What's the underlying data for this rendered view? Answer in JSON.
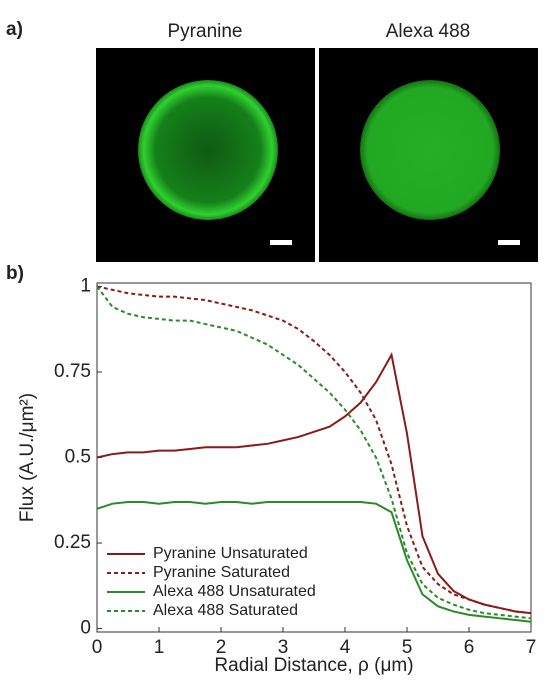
{
  "figure": {
    "panel_a_label": "a)",
    "panel_b_label": "b)",
    "image_titles": [
      "Pyranine",
      "Alexa 488"
    ]
  },
  "chart_data": {
    "type": "line",
    "x_label": "Radial Distance, ρ (μm)",
    "y_label": "Flux (A.U./μm²)",
    "x": [
      0,
      0.25,
      0.5,
      0.75,
      1,
      1.25,
      1.5,
      1.75,
      2,
      2.25,
      2.5,
      2.75,
      3,
      3.25,
      3.5,
      3.75,
      4,
      4.25,
      4.5,
      4.75,
      5,
      5.25,
      5.5,
      5.75,
      6,
      6.25,
      6.5,
      6.75,
      7
    ],
    "series": [
      {
        "name": "Pyranine Unsaturated",
        "color": "#8b1a1a",
        "dash": false,
        "values": [
          0.5,
          0.51,
          0.515,
          0.515,
          0.52,
          0.52,
          0.525,
          0.53,
          0.53,
          0.53,
          0.535,
          0.54,
          0.55,
          0.56,
          0.575,
          0.59,
          0.62,
          0.66,
          0.72,
          0.8,
          0.57,
          0.27,
          0.16,
          0.11,
          0.085,
          0.07,
          0.06,
          0.05,
          0.045
        ]
      },
      {
        "name": "Pyranine Saturated",
        "color": "#8b1a1a",
        "dash": true,
        "values": [
          1.0,
          0.99,
          0.98,
          0.975,
          0.97,
          0.97,
          0.965,
          0.96,
          0.95,
          0.94,
          0.93,
          0.915,
          0.9,
          0.875,
          0.84,
          0.8,
          0.75,
          0.69,
          0.61,
          0.48,
          0.3,
          0.18,
          0.13,
          0.1,
          0.085,
          0.07,
          0.06,
          0.05,
          0.045
        ]
      },
      {
        "name": "Alexa 488 Unsaturated",
        "color": "#2a8a2a",
        "dash": false,
        "values": [
          0.35,
          0.365,
          0.37,
          0.37,
          0.365,
          0.37,
          0.37,
          0.365,
          0.37,
          0.37,
          0.365,
          0.37,
          0.37,
          0.37,
          0.37,
          0.37,
          0.37,
          0.37,
          0.365,
          0.34,
          0.2,
          0.1,
          0.065,
          0.05,
          0.04,
          0.035,
          0.03,
          0.025,
          0.02
        ]
      },
      {
        "name": "Alexa 488 Saturated",
        "color": "#2a8a2a",
        "dash": true,
        "values": [
          1.0,
          0.94,
          0.92,
          0.91,
          0.905,
          0.9,
          0.9,
          0.89,
          0.88,
          0.87,
          0.85,
          0.83,
          0.8,
          0.77,
          0.73,
          0.69,
          0.64,
          0.58,
          0.5,
          0.38,
          0.22,
          0.13,
          0.09,
          0.07,
          0.055,
          0.045,
          0.04,
          0.035,
          0.03
        ]
      }
    ],
    "xlim": [
      0,
      7
    ],
    "xticks": [
      0,
      1,
      2,
      3,
      4,
      5,
      6,
      7
    ],
    "ylim": [
      -0.01,
      1.01
    ],
    "yticks": [
      0,
      0.25,
      0.5,
      0.75,
      1
    ],
    "legend": "lower-left"
  }
}
